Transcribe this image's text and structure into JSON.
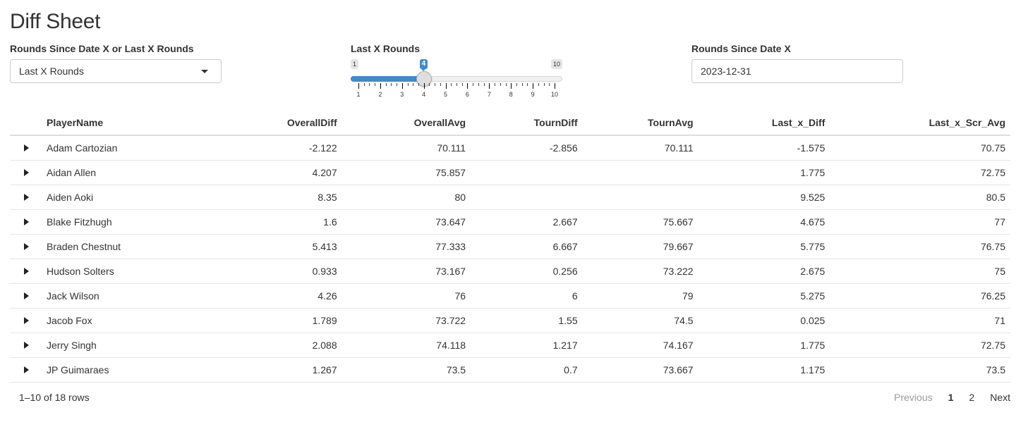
{
  "page": {
    "title": "Diff Sheet"
  },
  "controls": {
    "mode_select": {
      "label": "Rounds Since Date X or Last X Rounds",
      "value": "Last X Rounds"
    },
    "last_x_slider": {
      "label": "Last X Rounds",
      "min": 1,
      "max": 10,
      "value": 4,
      "min_label": "1",
      "max_label": "10",
      "value_label": "4",
      "ticks": [
        "1",
        "2",
        "3",
        "4",
        "5",
        "6",
        "7",
        "8",
        "9",
        "10"
      ],
      "accent_color": "#428bca"
    },
    "date_input": {
      "label": "Rounds Since Date X",
      "value": "2023-12-31"
    }
  },
  "table": {
    "columns": [
      "PlayerName",
      "OverallDiff",
      "OverallAvg",
      "TournDiff",
      "TournAvg",
      "Last_x_Diff",
      "Last_x_Scr_Avg"
    ],
    "rows": [
      [
        "Adam Cartozian",
        "-2.122",
        "70.111",
        "-2.856",
        "70.111",
        "-1.575",
        "70.75"
      ],
      [
        "Aidan Allen",
        "4.207",
        "75.857",
        "",
        "",
        "1.775",
        "72.75"
      ],
      [
        "Aiden Aoki",
        "8.35",
        "80",
        "",
        "",
        "9.525",
        "80.5"
      ],
      [
        "Blake Fitzhugh",
        "1.6",
        "73.647",
        "2.667",
        "75.667",
        "4.675",
        "77"
      ],
      [
        "Braden Chestnut",
        "5.413",
        "77.333",
        "6.667",
        "79.667",
        "5.775",
        "76.75"
      ],
      [
        "Hudson Solters",
        "0.933",
        "73.167",
        "0.256",
        "73.222",
        "2.675",
        "75"
      ],
      [
        "Jack Wilson",
        "4.26",
        "76",
        "6",
        "79",
        "5.275",
        "76.25"
      ],
      [
        "Jacob Fox",
        "1.789",
        "73.722",
        "1.55",
        "74.5",
        "0.025",
        "71"
      ],
      [
        "Jerry Singh",
        "2.088",
        "74.118",
        "1.217",
        "74.167",
        "1.775",
        "72.75"
      ],
      [
        "JP Guimaraes",
        "1.267",
        "73.5",
        "0.7",
        "73.667",
        "1.175",
        "73.5"
      ]
    ]
  },
  "pagination": {
    "info": "1–10 of 18 rows",
    "previous": "Previous",
    "pages": [
      "1",
      "2"
    ],
    "current_page": "1",
    "next": "Next"
  }
}
